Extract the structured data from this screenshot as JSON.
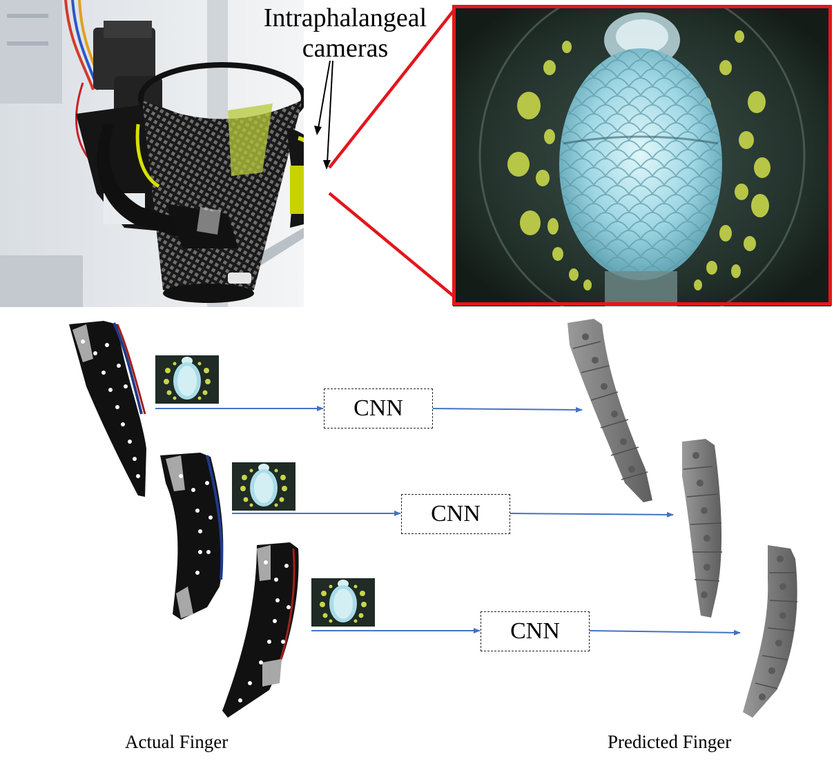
{
  "callout": {
    "line1": "Intraphalangeal",
    "line2": "cameras"
  },
  "pipeline": {
    "rows": [
      {
        "model_label": "CNN"
      },
      {
        "model_label": "CNN"
      },
      {
        "model_label": "CNN"
      }
    ]
  },
  "captions": {
    "left": "Actual Finger",
    "right": "Predicted Finger"
  },
  "colors": {
    "arrow": "#4472c4",
    "highlight_frame": "#e3161c",
    "tag_yellow": "#d8e000",
    "camera_bg": "#1f2b24",
    "predicted_finger": "#8a8a8a"
  },
  "icons": [
    "robot-hand-photo",
    "camera-view-photo",
    "actual-finger-photo",
    "predicted-finger-render",
    "camera-thumbnail"
  ]
}
